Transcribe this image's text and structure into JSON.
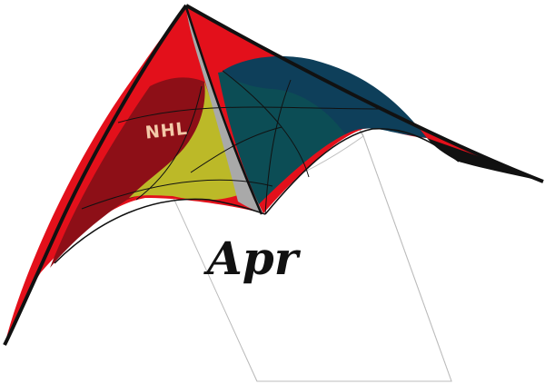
{
  "kite": {
    "logo_text": "NHL",
    "colors": {
      "red": "#e3101b",
      "dark_red": "#8d0f17",
      "yellow": "#bcb928",
      "teal": "#0c4d55",
      "navy": "#0e3f5a",
      "spine": "#a9a9a9",
      "outline": "#111111"
    }
  },
  "banner": {
    "text": "Apr",
    "background": "#ffffff",
    "border": "#bdbdbd"
  }
}
